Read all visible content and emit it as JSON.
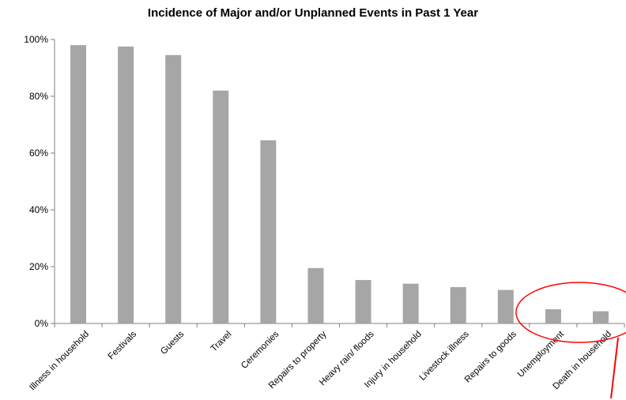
{
  "chart_data": {
    "type": "bar",
    "title": "Incidence of Major and/or Unplanned Events in Past 1 Year",
    "xlabel": "",
    "ylabel": "",
    "categories": [
      "Illness in household",
      "Festivals",
      "Guests",
      "Travel",
      "Ceremonies",
      "Repairs to property",
      "Heavy rain/ floods",
      "Injury in household",
      "Livestock illness",
      "Repairs to goods",
      "Unemployment",
      "Death in household"
    ],
    "values": [
      98,
      97.5,
      94.5,
      82,
      64.5,
      19.5,
      15.3,
      14,
      12.8,
      11.8,
      5,
      4.3
    ],
    "ylim": [
      0,
      100
    ],
    "y_ticks": [
      "0%",
      "20%",
      "40%",
      "60%",
      "80%",
      "100%"
    ],
    "grid": false,
    "legend": "none",
    "colors": {
      "bar": "#a6a6a6",
      "axis": "#808080",
      "annotation": "#ff0000"
    },
    "annotation": "red ellipse highlighting Unemployment and Death in household"
  }
}
